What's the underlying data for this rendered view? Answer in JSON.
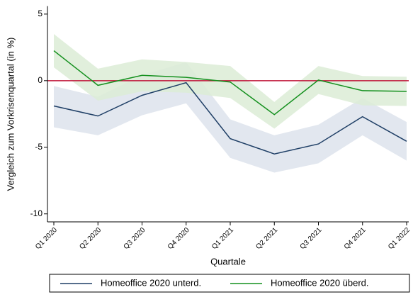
{
  "chart_data": {
    "type": "line",
    "y_label": "Vergleich zum Vorkrisenquartal (in %)",
    "x_label": "Quartale",
    "categories": [
      "Q1 2020",
      "Q2 2020",
      "Q3 2020",
      "Q4 2020",
      "Q1 2021",
      "Q2 2021",
      "Q3 2021",
      "Q4 2021",
      "Q1 2022"
    ],
    "series": [
      {
        "name": "Homeoffice 2020 unterd.",
        "color": "#1f3f66",
        "band_color": "#dde3ec",
        "values": [
          -1.9,
          -2.65,
          -1.1,
          -0.15,
          -4.35,
          -5.5,
          -4.75,
          -2.7,
          -4.55
        ],
        "lower": [
          -3.5,
          -4.1,
          -2.6,
          -1.7,
          -5.8,
          -6.9,
          -6.2,
          -4.1,
          -6.0
        ],
        "upper": [
          -0.4,
          -1.2,
          0.4,
          1.4,
          -2.9,
          -4.1,
          -3.3,
          -1.3,
          -3.1
        ]
      },
      {
        "name": "Homeoffice 2020 überd.",
        "color": "#14901e",
        "band_color": "#dcecd6",
        "values": [
          2.25,
          -0.35,
          0.4,
          0.25,
          -0.1,
          -2.55,
          0.05,
          -0.75,
          -0.8
        ],
        "lower": [
          1.0,
          -1.5,
          -0.8,
          -0.9,
          -1.3,
          -3.6,
          -1.0,
          -1.85,
          -1.9
        ],
        "upper": [
          3.5,
          0.9,
          1.6,
          1.4,
          1.1,
          -1.6,
          1.1,
          0.35,
          0.3
        ]
      }
    ],
    "reference_line": {
      "value": 0,
      "color": "#c0163a"
    },
    "ylim": [
      -10.6,
      5.6
    ],
    "yticks": [
      5,
      0,
      -5,
      -10
    ],
    "legend": "bottom"
  }
}
